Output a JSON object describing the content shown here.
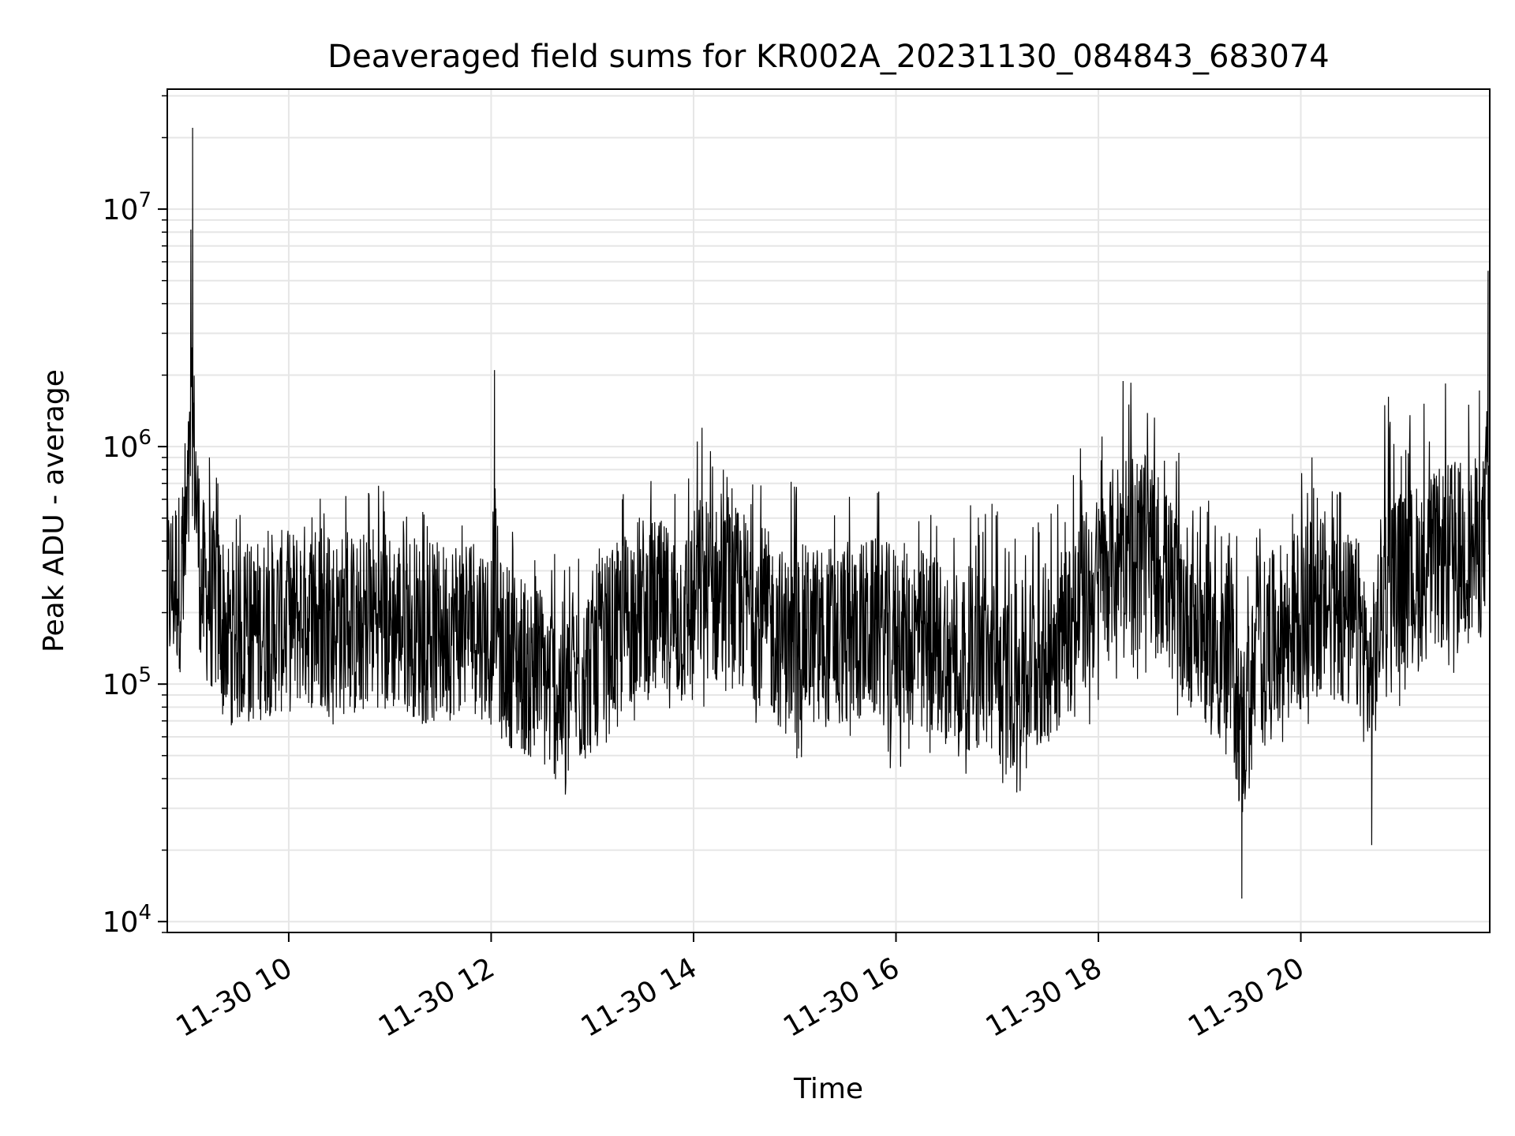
{
  "chart_data": {
    "type": "line",
    "title": "Deaveraged field sums for KR002A_20231130_084843_683074",
    "xlabel": "Time",
    "ylabel": "Peak ADU - average",
    "yscale": "log",
    "ylim": [
      9000,
      32000000
    ],
    "xlim": [
      "2023-11-30 08:48",
      "2023-11-30 21:52"
    ],
    "grid": true,
    "line_color": "#000000",
    "x_ticks": [
      {
        "x": "2023-11-30 10:00",
        "label": "11-30 10"
      },
      {
        "x": "2023-11-30 12:00",
        "label": "11-30 12"
      },
      {
        "x": "2023-11-30 14:00",
        "label": "11-30 14"
      },
      {
        "x": "2023-11-30 16:00",
        "label": "11-30 16"
      },
      {
        "x": "2023-11-30 18:00",
        "label": "11-30 18"
      },
      {
        "x": "2023-11-30 20:00",
        "label": "11-30 20"
      }
    ],
    "y_ticks": [
      {
        "value": 10000,
        "base": "10",
        "exp": "4"
      },
      {
        "value": 100000,
        "base": "10",
        "exp": "5"
      },
      {
        "value": 1000000,
        "base": "10",
        "exp": "6"
      },
      {
        "value": 10000000,
        "base": "10",
        "exp": "7"
      }
    ],
    "series": [
      {
        "x": [
          "2023-11-30 08:48",
          "2023-11-30 08:53",
          "2023-11-30 08:58",
          "2023-11-30 09:03",
          "2023-11-30 09:08",
          "2023-11-30 09:13",
          "2023-11-30 09:18",
          "2023-11-30 09:23",
          "2023-11-30 09:30",
          "2023-11-30 09:40",
          "2023-11-30 09:50",
          "2023-11-30 10:00",
          "2023-11-30 10:10",
          "2023-11-30 10:20",
          "2023-11-30 10:30",
          "2023-11-30 10:40",
          "2023-11-30 10:50",
          "2023-11-30 11:00",
          "2023-11-30 11:10",
          "2023-11-30 11:20",
          "2023-11-30 11:30",
          "2023-11-30 11:40",
          "2023-11-30 11:50",
          "2023-11-30 12:00",
          "2023-11-30 12:02",
          "2023-11-30 12:05",
          "2023-11-30 12:15",
          "2023-11-30 12:25",
          "2023-11-30 12:35",
          "2023-11-30 12:45",
          "2023-11-30 12:55",
          "2023-11-30 13:05",
          "2023-11-30 13:15",
          "2023-11-30 13:25",
          "2023-11-30 13:35",
          "2023-11-30 13:45",
          "2023-11-30 13:55",
          "2023-11-30 14:05",
          "2023-11-30 14:15",
          "2023-11-30 14:25",
          "2023-11-30 14:35",
          "2023-11-30 14:45",
          "2023-11-30 14:55",
          "2023-11-30 15:05",
          "2023-11-30 15:15",
          "2023-11-30 15:25",
          "2023-11-30 15:35",
          "2023-11-30 15:45",
          "2023-11-30 15:55",
          "2023-11-30 16:05",
          "2023-11-30 16:15",
          "2023-11-30 16:25",
          "2023-11-30 16:35",
          "2023-11-30 16:45",
          "2023-11-30 16:55",
          "2023-11-30 17:05",
          "2023-11-30 17:15",
          "2023-11-30 17:25",
          "2023-11-30 17:35",
          "2023-11-30 17:45",
          "2023-11-30 17:55",
          "2023-11-30 18:05",
          "2023-11-30 18:15",
          "2023-11-30 18:25",
          "2023-11-30 18:35",
          "2023-11-30 18:45",
          "2023-11-30 18:55",
          "2023-11-30 19:05",
          "2023-11-30 19:15",
          "2023-11-30 19:20",
          "2023-11-30 19:25",
          "2023-11-30 19:35",
          "2023-11-30 19:45",
          "2023-11-30 19:55",
          "2023-11-30 20:05",
          "2023-11-30 20:15",
          "2023-11-30 20:25",
          "2023-11-30 20:35",
          "2023-11-30 20:42",
          "2023-11-30 20:50",
          "2023-11-30 21:00",
          "2023-11-30 21:10",
          "2023-11-30 21:20",
          "2023-11-30 21:30",
          "2023-11-30 21:40",
          "2023-11-30 21:48",
          "2023-11-30 21:51",
          "2023-11-30 21:52"
        ],
        "y": [
          300000,
          500000,
          600000,
          22000000,
          180000,
          900000,
          700000,
          200000,
          250000,
          300000,
          220000,
          260000,
          280000,
          250000,
          300000,
          260000,
          280000,
          240000,
          250000,
          230000,
          260000,
          280000,
          270000,
          230000,
          2100000,
          200000,
          170000,
          180000,
          130000,
          110000,
          190000,
          200000,
          210000,
          220000,
          280000,
          250000,
          300000,
          1200000,
          280000,
          300000,
          600000,
          350000,
          280000,
          250000,
          230000,
          220000,
          240000,
          260000,
          200000,
          190000,
          180000,
          170000,
          160000,
          130000,
          120000,
          110000,
          100000,
          110000,
          200000,
          250000,
          300000,
          400000,
          550000,
          800000,
          600000,
          400000,
          320000,
          250000,
          200000,
          150000,
          12500,
          200000,
          250000,
          300000,
          320000,
          280000,
          300000,
          280000,
          21000,
          250000,
          300000,
          500000,
          550000,
          600000,
          650000,
          600000,
          5500000,
          500000
        ]
      }
    ],
    "envelope": {
      "note_free": true,
      "upper": [
        620000,
        700000,
        850000,
        22000000,
        1000000,
        900000,
        850000,
        700000,
        550000,
        550000,
        600000,
        580000,
        650000,
        620000,
        700000,
        650000,
        800000,
        600000,
        600000,
        580000,
        600000,
        650000,
        620000,
        560000,
        2100000,
        500000,
        450000,
        400000,
        380000,
        350000,
        420000,
        480000,
        600000,
        900000,
        800000,
        650000,
        700000,
        1300000,
        900000,
        850000,
        900000,
        800000,
        750000,
        700000,
        650000,
        600000,
        750000,
        900000,
        900000,
        800000,
        650000,
        600000,
        550000,
        600000,
        700000,
        550000,
        500000,
        550000,
        700000,
        900000,
        1200000,
        1500000,
        2700000,
        2100000,
        1800000,
        1000000,
        800000,
        600000,
        500000,
        450000,
        400000,
        500000,
        600000,
        750000,
        900000,
        1000000,
        800000,
        700000,
        600000,
        1800000,
        1300000,
        1500000,
        1700000,
        2000000,
        1800000,
        1800000,
        5700000,
        1500000
      ],
      "lower": [
        130000,
        150000,
        120000,
        100000,
        90000,
        85000,
        70000,
        60000,
        65000,
        70000,
        75000,
        80000,
        85000,
        70000,
        65000,
        60000,
        70000,
        75000,
        80000,
        65000,
        60000,
        70000,
        75000,
        65000,
        60000,
        55000,
        50000,
        45000,
        35000,
        31000,
        40000,
        55000,
        60000,
        70000,
        75000,
        80000,
        70000,
        75000,
        80000,
        85000,
        70000,
        55000,
        40000,
        50000,
        55000,
        60000,
        50000,
        45000,
        40000,
        45000,
        50000,
        48000,
        42000,
        38000,
        30000,
        25000,
        35000,
        40000,
        45000,
        55000,
        65000,
        80000,
        90000,
        100000,
        85000,
        75000,
        65000,
        55000,
        45000,
        40000,
        12500,
        45000,
        55000,
        60000,
        65000,
        70000,
        60000,
        55000,
        21000,
        70000,
        75000,
        80000,
        85000,
        90000,
        100000,
        110000,
        120000,
        70000
      ]
    }
  }
}
